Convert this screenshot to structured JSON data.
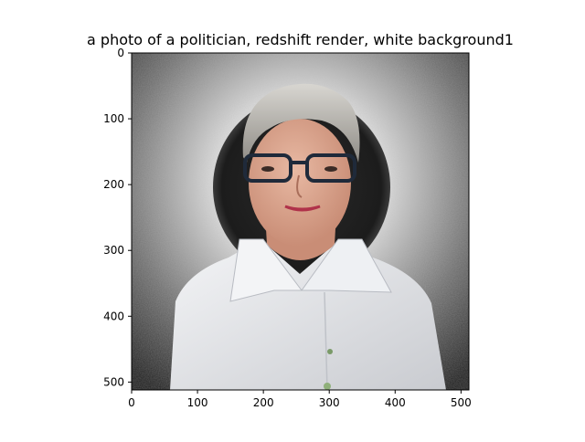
{
  "chart_data": {
    "type": "image",
    "title": "a photo of a politician, redshift render, white background1",
    "xlabel": "",
    "ylabel": "",
    "xlim": [
      0,
      512
    ],
    "ylim": [
      512,
      0
    ],
    "x_ticks": [
      0,
      100,
      200,
      300,
      400,
      500
    ],
    "y_ticks": [
      0,
      100,
      200,
      300,
      400,
      500
    ],
    "grid": false,
    "image_content": "portrait of a smiling woman with short grey hair and dark-rimmed glasses wearing a white collared shirt, dark circular halo behind her head, textured grey-white backdrop"
  },
  "colors": {
    "backdrop_light": "#f2f2f2",
    "backdrop_dark": "#1a1a1a",
    "halo": "#222222",
    "shirt": "#e6e7e9",
    "skin": "#d9a58e",
    "hair": "#c4c2bd",
    "glasses": "#1f2a3a",
    "lips": "#b0324a"
  }
}
